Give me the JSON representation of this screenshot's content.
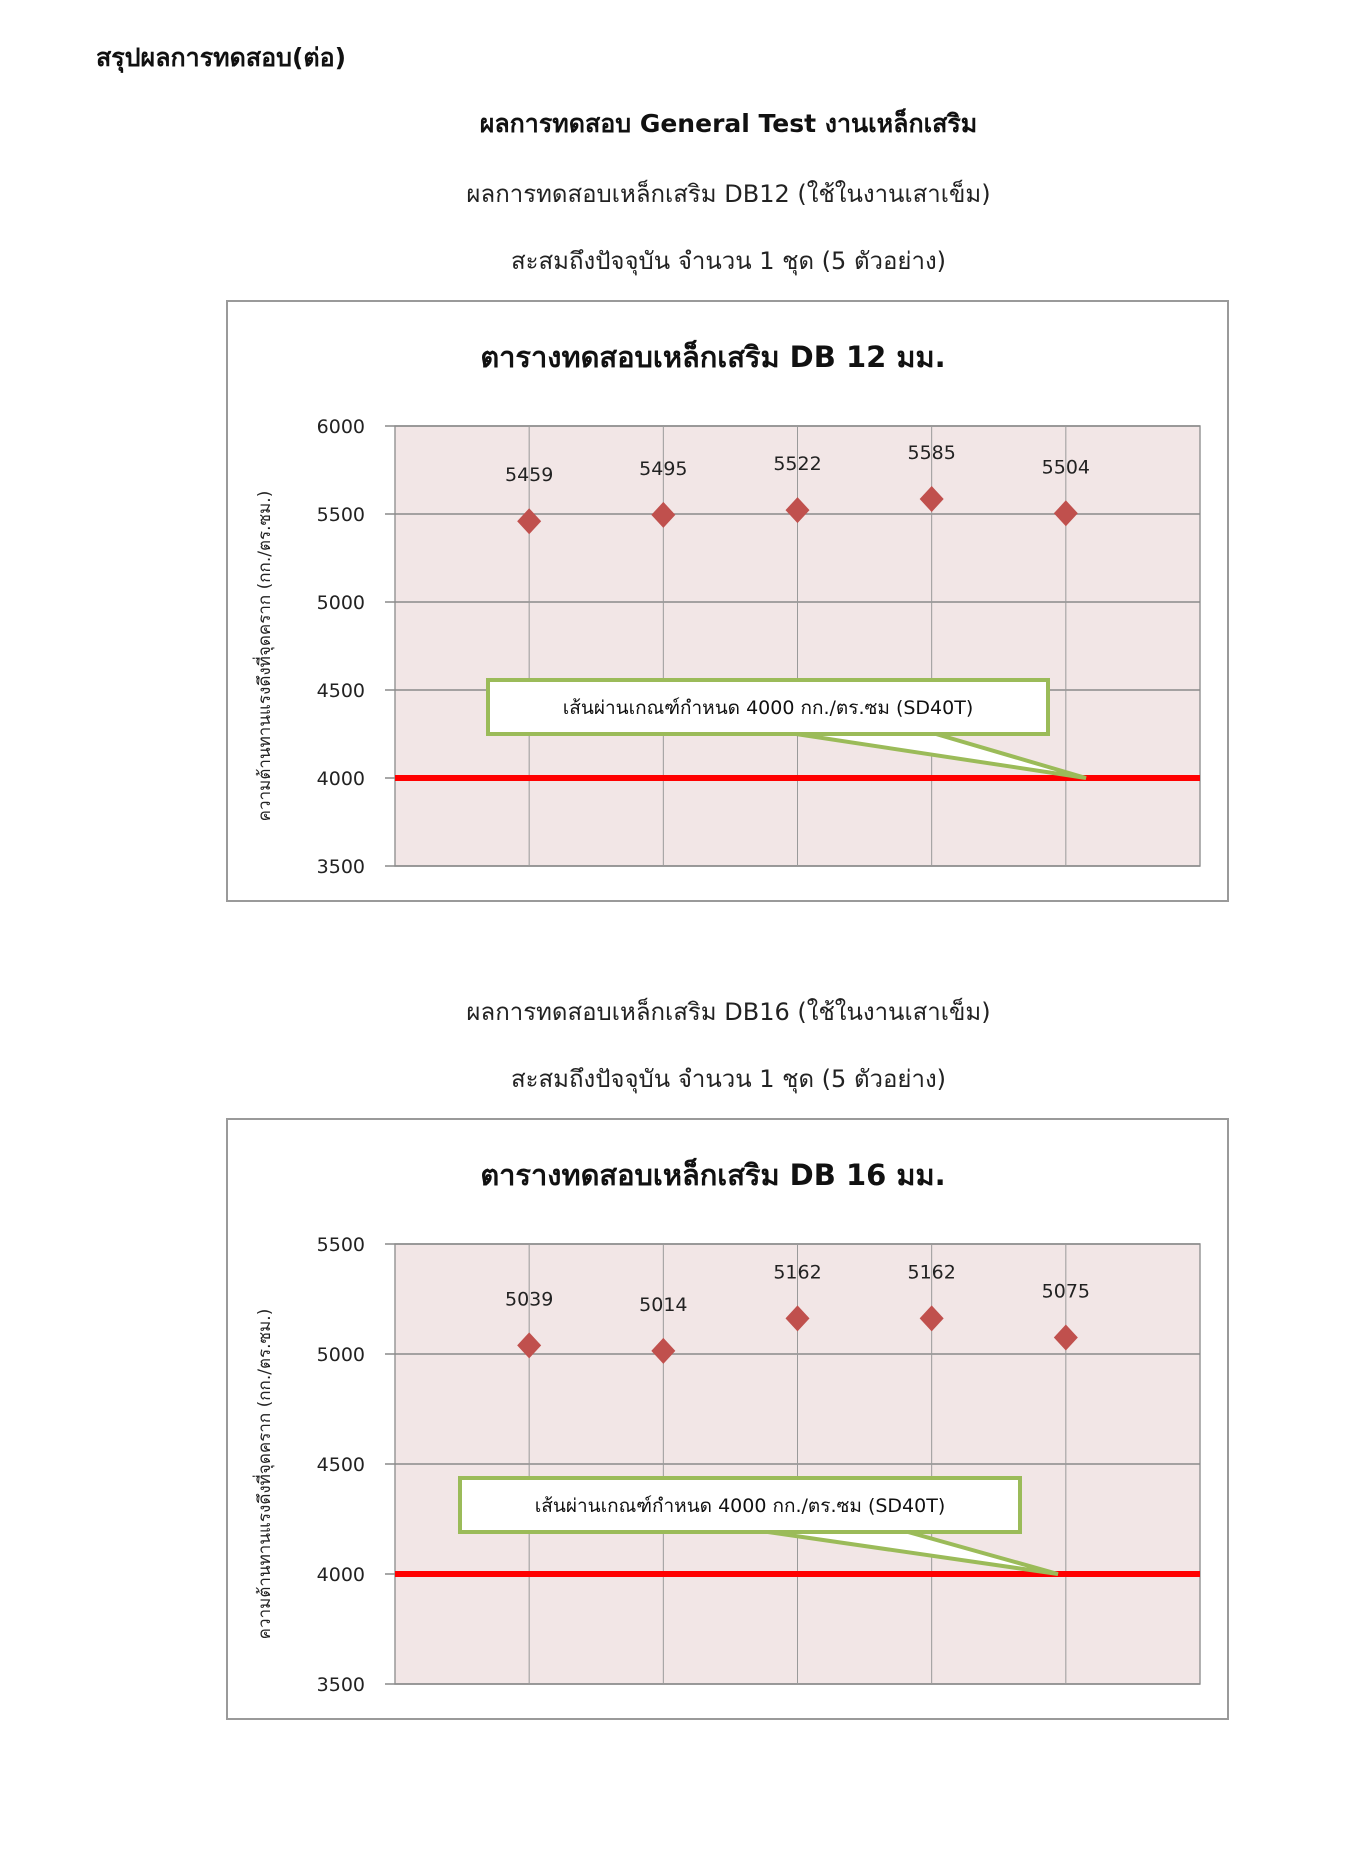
{
  "header": "สรุปผลการทดสอบ(ต่อ)",
  "title": "ผลการทดสอบ General Test งานเหล็กเสริม",
  "sections": [
    {
      "subtitle1": "ผลการทดสอบเหล็กเสริม DB12 (ใช้ในงานเสาเข็ม)",
      "subtitle2": "สะสมถึงปัจจุบัน จำนวน 1 ชุด (5 ตัวอย่าง)"
    },
    {
      "subtitle1": "ผลการทดสอบเหล็กเสริม DB16 (ใช้ในงานเสาเข็ม)",
      "subtitle2": "สะสมถึงปัจจุบัน จำนวน 1 ชุด (5 ตัวอย่าง)"
    }
  ],
  "colors": {
    "marker": "#c0504d",
    "threshold": "#ff0000",
    "plot_bg": "#f2e6e6",
    "callout_border": "#9bbb59"
  },
  "chart_data": [
    {
      "type": "scatter",
      "title": "ตารางทดสอบเหล็กเสริม DB 12 มม.",
      "ylabel": "ความต้านทานแรงดึงที่จุดคราก (กก./ตร.ซม.)",
      "ylim": [
        3500,
        6000
      ],
      "yticks": [
        "3500",
        "4000",
        "4500",
        "5000",
        "5500",
        "6000"
      ],
      "x": [
        1,
        2,
        3,
        4,
        5
      ],
      "values": [
        5459,
        5495,
        5522,
        5585,
        5504
      ],
      "data_labels": [
        "5459",
        "5495",
        "5522",
        "5585",
        "5504"
      ],
      "threshold": 4000,
      "annotation": "เส้นผ่านเกณฑ์กำหนด 4000 กก./ตร.ซม (SD40T)",
      "grid": true
    },
    {
      "type": "scatter",
      "title": "ตารางทดสอบเหล็กเสริม DB 16 มม.",
      "ylabel": "ความต้านทานแรงดึงที่จุดคราก (กก./ตร.ซม.)",
      "ylim": [
        3500,
        5500
      ],
      "yticks": [
        "3500",
        "4000",
        "4500",
        "5000",
        "5500"
      ],
      "x": [
        1,
        2,
        3,
        4,
        5
      ],
      "values": [
        5039,
        5014,
        5162,
        5162,
        5075
      ],
      "data_labels": [
        "5039",
        "5014",
        "5162",
        "5162",
        "5075"
      ],
      "threshold": 4000,
      "annotation": "เส้นผ่านเกณฑ์กำหนด 4000 กก./ตร.ซม (SD40T)",
      "grid": true
    }
  ]
}
